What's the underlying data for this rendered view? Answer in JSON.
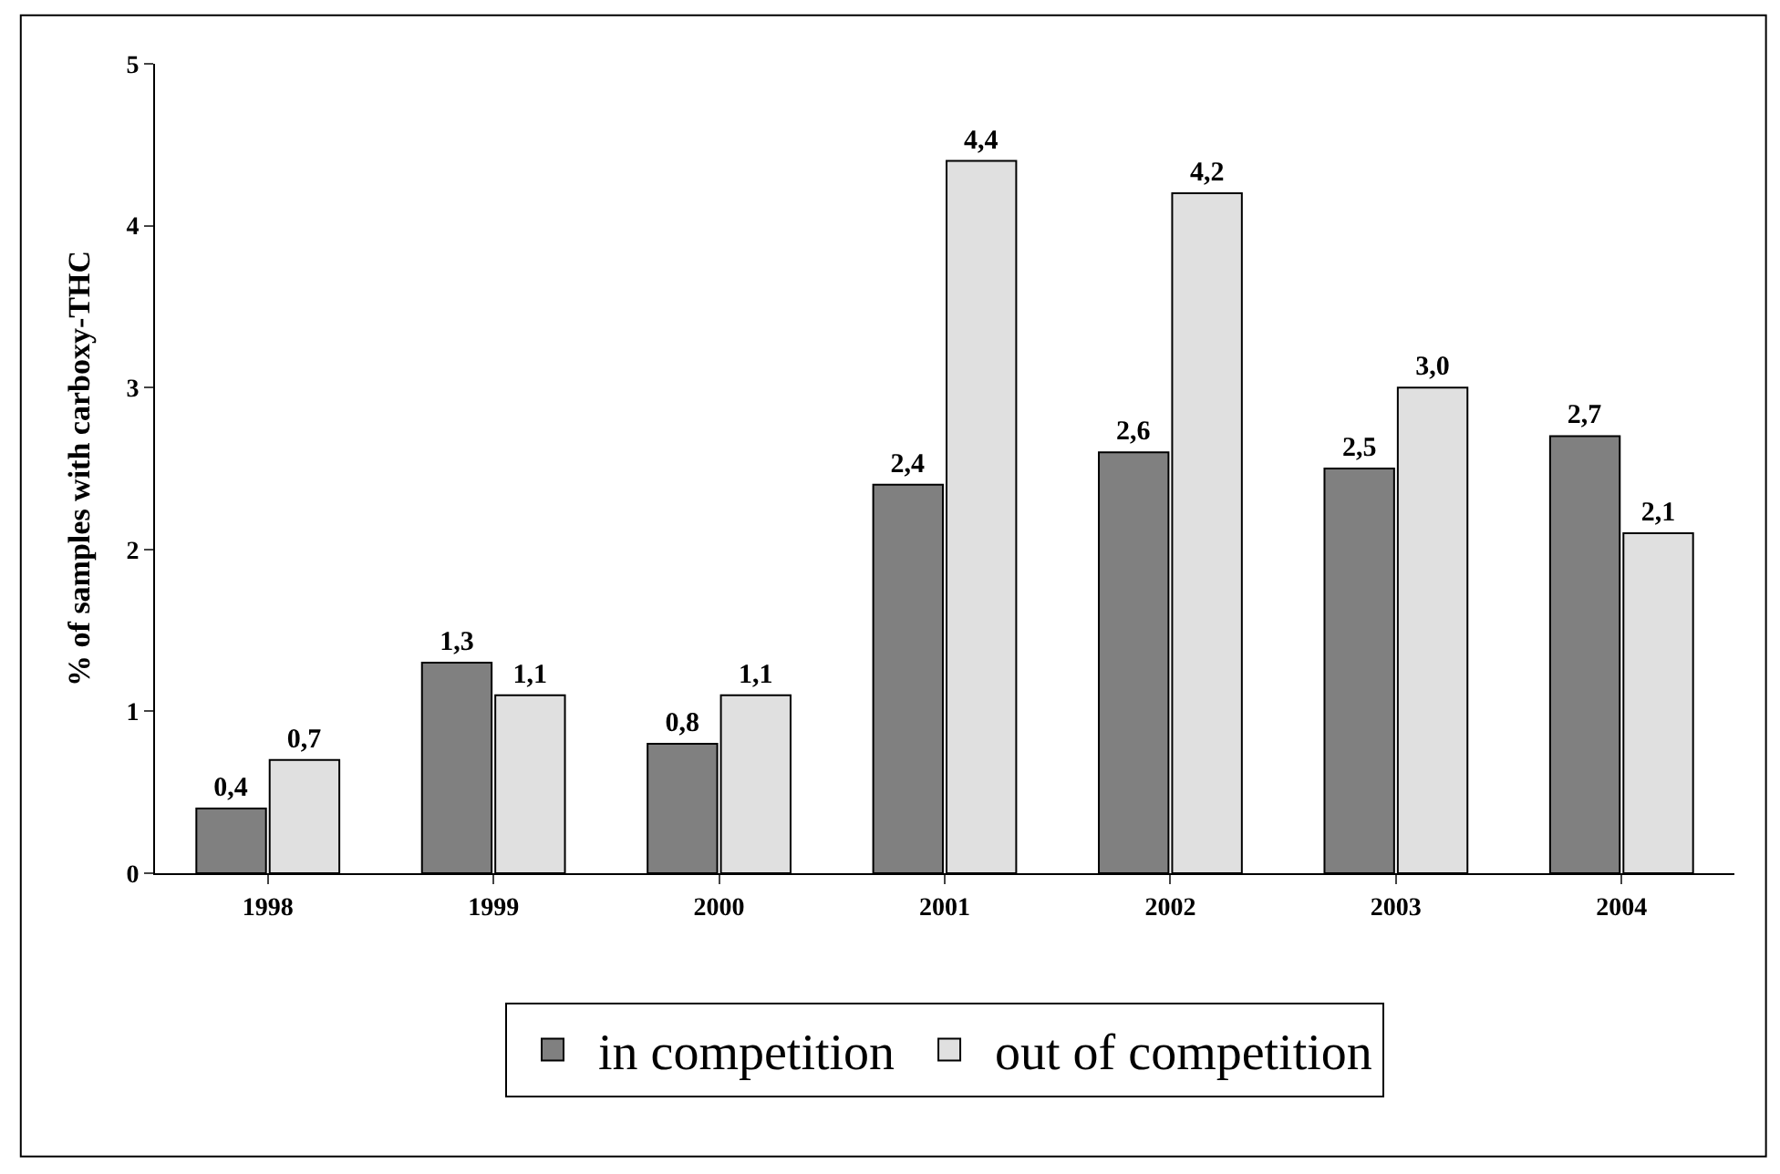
{
  "chart_data": {
    "type": "bar",
    "ylabel": "% of samples with carboxy-THC",
    "categories": [
      "1998",
      "1999",
      "2000",
      "2001",
      "2002",
      "2003",
      "2004"
    ],
    "series": [
      {
        "name": "in competition",
        "color": "#808080",
        "values": [
          0.4,
          1.3,
          0.8,
          2.4,
          2.6,
          2.5,
          2.7
        ],
        "value_labels": [
          "0,4",
          "1,3",
          "0,8",
          "2,4",
          "2,6",
          "2,5",
          "2,7"
        ]
      },
      {
        "name": "out of competition",
        "color": "#e0e0e0",
        "values": [
          0.7,
          1.1,
          1.1,
          4.4,
          4.2,
          3.0,
          2.1
        ],
        "value_labels": [
          "0,7",
          "1,1",
          "1,1",
          "4,4",
          "4,2",
          "3,0",
          "2,1"
        ]
      }
    ],
    "ylim": [
      0,
      5
    ],
    "yticks": [
      0,
      1,
      2,
      3,
      4,
      5
    ],
    "legend": "bottom"
  }
}
